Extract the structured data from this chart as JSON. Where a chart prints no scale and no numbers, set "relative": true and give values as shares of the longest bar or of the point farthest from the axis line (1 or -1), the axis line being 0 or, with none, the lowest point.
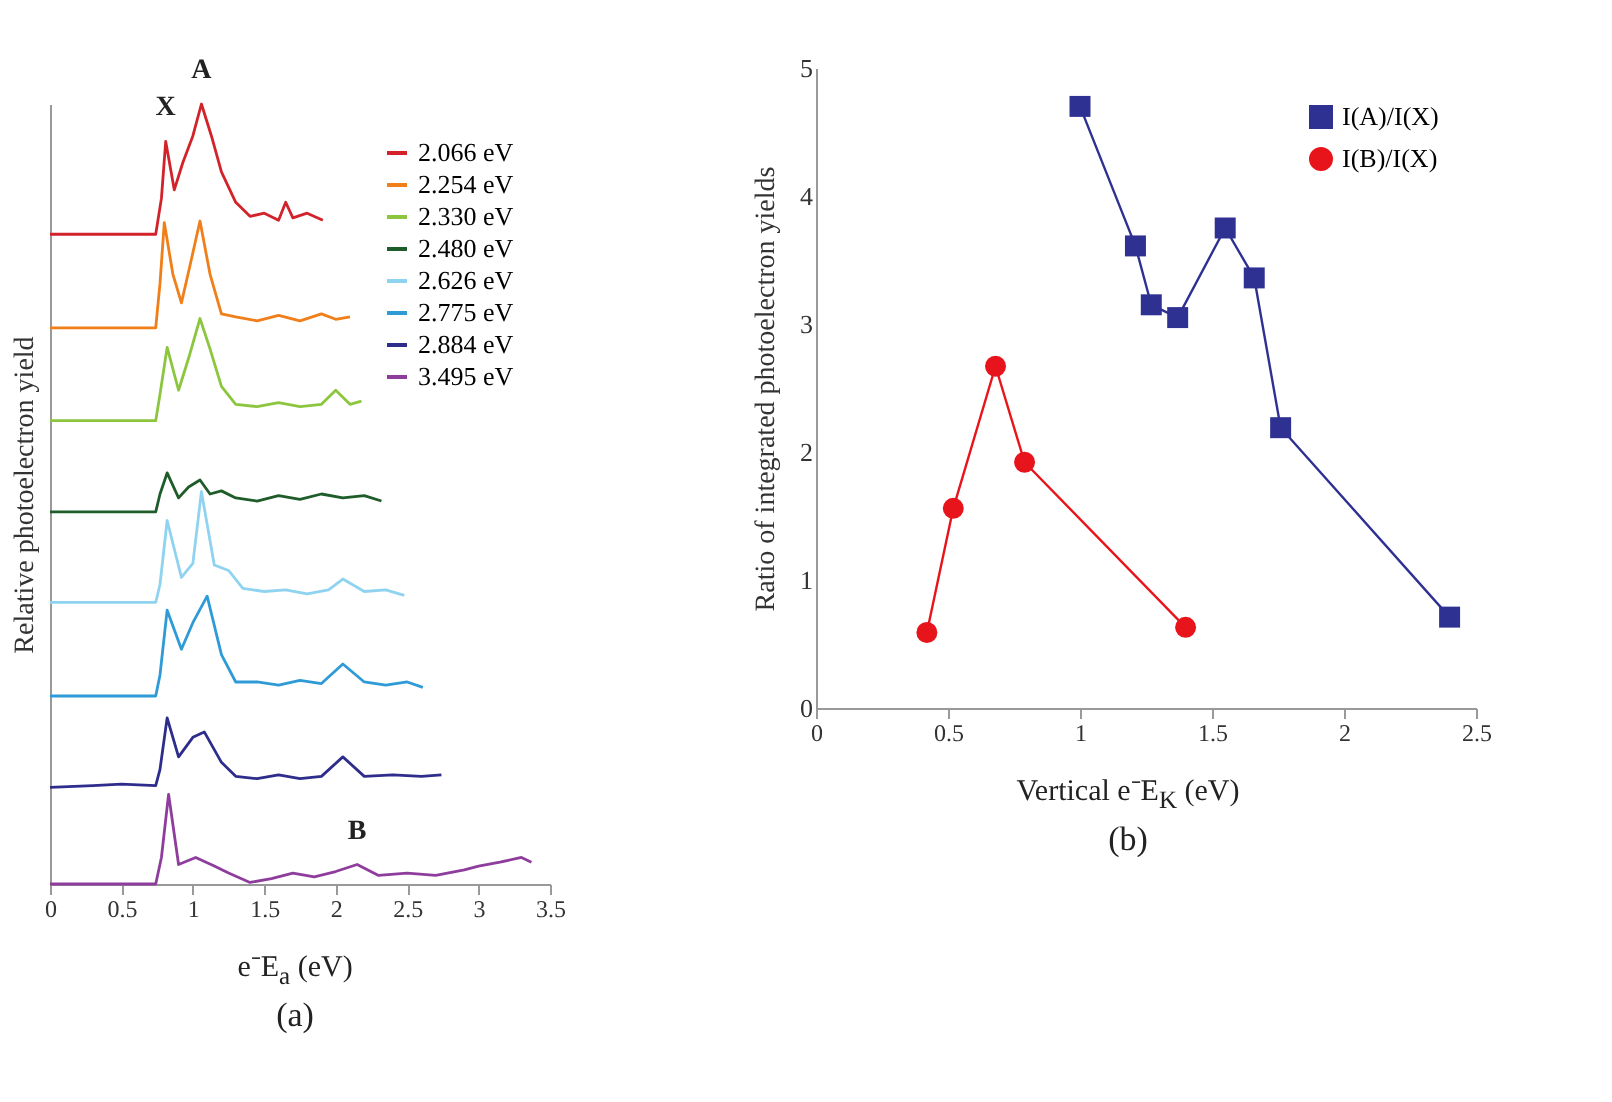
{
  "chart_data": [
    {
      "type": "line",
      "title": "(a)",
      "xlabel": "e⁻E$_{a}$ (eV)",
      "ylabel": "Relative photoelectron yield",
      "relative": true,
      "xlim": [
        0,
        3.5
      ],
      "xticks": [
        0,
        0.5,
        1,
        1.5,
        2,
        2.5,
        3,
        3.5
      ],
      "legend": "top right",
      "grid": false,
      "annotations": [
        {
          "text": "X",
          "x": 0.81,
          "y": 0.952
        },
        {
          "text": "A",
          "x": 1.06,
          "y": 1.0
        },
        {
          "text": "B",
          "x": 2.15,
          "y": 0.025
        }
      ],
      "series": [
        {
          "name": "2.066 eV",
          "color": "#d2232a",
          "x": [
            0,
            0.5,
            0.74,
            0.78,
            0.81,
            0.87,
            0.93,
            1.0,
            1.06,
            1.13,
            1.2,
            1.3,
            1.4,
            1.5,
            1.6,
            1.65,
            1.7,
            1.8,
            1.91
          ],
          "values": [
            0.833,
            0.833,
            0.833,
            0.879,
            0.952,
            0.89,
            0.925,
            0.959,
            1.0,
            0.959,
            0.913,
            0.874,
            0.856,
            0.86,
            0.851,
            0.874,
            0.854,
            0.86,
            0.851
          ]
        },
        {
          "name": "2.254 eV",
          "color": "#f07f1a",
          "x": [
            0,
            0.5,
            0.74,
            0.77,
            0.8,
            0.86,
            0.92,
            0.98,
            1.05,
            1.12,
            1.2,
            1.3,
            1.45,
            1.6,
            1.75,
            1.9,
            2.0,
            2.1
          ],
          "values": [
            0.713,
            0.713,
            0.713,
            0.77,
            0.848,
            0.782,
            0.745,
            0.793,
            0.85,
            0.782,
            0.731,
            0.727,
            0.722,
            0.729,
            0.722,
            0.731,
            0.724,
            0.727
          ]
        },
        {
          "name": "2.330 eV",
          "color": "#8cc63e",
          "x": [
            0,
            0.5,
            0.74,
            0.77,
            0.82,
            0.9,
            0.97,
            1.05,
            1.12,
            1.2,
            1.3,
            1.45,
            1.6,
            1.75,
            1.9,
            2.0,
            2.1,
            2.18
          ],
          "values": [
            0.594,
            0.594,
            0.594,
            0.628,
            0.688,
            0.633,
            0.674,
            0.725,
            0.686,
            0.638,
            0.615,
            0.612,
            0.617,
            0.612,
            0.615,
            0.633,
            0.615,
            0.619
          ]
        },
        {
          "name": "2.480 eV",
          "color": "#1e5c2a",
          "x": [
            0,
            0.5,
            0.74,
            0.77,
            0.82,
            0.9,
            0.97,
            1.05,
            1.12,
            1.2,
            1.3,
            1.45,
            1.6,
            1.75,
            1.9,
            2.05,
            2.2,
            2.32
          ],
          "values": [
            0.477,
            0.477,
            0.477,
            0.5,
            0.527,
            0.495,
            0.509,
            0.518,
            0.5,
            0.504,
            0.495,
            0.491,
            0.498,
            0.493,
            0.5,
            0.495,
            0.498,
            0.491
          ]
        },
        {
          "name": "2.626 eV",
          "color": "#8fd3f0",
          "x": [
            0,
            0.5,
            0.74,
            0.77,
            0.82,
            0.92,
            1.0,
            1.06,
            1.15,
            1.25,
            1.35,
            1.5,
            1.65,
            1.8,
            1.95,
            2.05,
            2.2,
            2.35,
            2.48
          ],
          "values": [
            0.361,
            0.361,
            0.361,
            0.384,
            0.466,
            0.393,
            0.411,
            0.503,
            0.409,
            0.402,
            0.379,
            0.375,
            0.377,
            0.372,
            0.377,
            0.391,
            0.375,
            0.377,
            0.37
          ]
        },
        {
          "name": "2.775 eV",
          "color": "#2f9bd6",
          "x": [
            0,
            0.5,
            0.74,
            0.77,
            0.82,
            0.92,
            1.0,
            1.1,
            1.2,
            1.3,
            1.45,
            1.6,
            1.75,
            1.9,
            2.05,
            2.2,
            2.35,
            2.5,
            2.61
          ],
          "values": [
            0.241,
            0.241,
            0.241,
            0.268,
            0.351,
            0.301,
            0.335,
            0.369,
            0.294,
            0.259,
            0.259,
            0.255,
            0.261,
            0.257,
            0.282,
            0.259,
            0.255,
            0.259,
            0.252
          ]
        },
        {
          "name": "2.884 eV",
          "color": "#2e2d8c",
          "x": [
            0,
            0.3,
            0.5,
            0.74,
            0.77,
            0.82,
            0.9,
            1.0,
            1.08,
            1.2,
            1.3,
            1.45,
            1.6,
            1.75,
            1.9,
            2.05,
            2.2,
            2.4,
            2.6,
            2.74
          ],
          "values": [
            0.124,
            0.126,
            0.128,
            0.126,
            0.147,
            0.213,
            0.163,
            0.188,
            0.195,
            0.156,
            0.138,
            0.135,
            0.14,
            0.135,
            0.138,
            0.163,
            0.138,
            0.14,
            0.138,
            0.14
          ]
        },
        {
          "name": "3.495 eV",
          "color": "#8e3d9c",
          "x": [
            0,
            0.5,
            0.74,
            0.78,
            0.83,
            0.9,
            1.02,
            1.15,
            1.25,
            1.4,
            1.55,
            1.7,
            1.85,
            2.0,
            2.15,
            2.3,
            2.5,
            2.7,
            2.9,
            3.0,
            3.15,
            3.3,
            3.37
          ],
          "values": [
            0,
            0,
            0,
            0.034,
            0.115,
            0.025,
            0.034,
            0.023,
            0.014,
            0.002,
            0.007,
            0.014,
            0.009,
            0.016,
            0.025,
            0.011,
            0.014,
            0.011,
            0.018,
            0.023,
            0.028,
            0.034,
            0.028
          ]
        }
      ]
    },
    {
      "type": "line",
      "title": "(b)",
      "xlabel": "Vertical e⁻E$_{K}$ (eV)",
      "ylabel": "Ratio of integrated photoelectron yields",
      "xlim": [
        0,
        2.5
      ],
      "xticks": [
        0,
        0.5,
        1,
        1.5,
        2,
        2.5
      ],
      "ylim": [
        0,
        5
      ],
      "yticks": [
        0,
        1,
        2,
        3,
        4,
        5
      ],
      "legend": "top right",
      "grid": false,
      "series": [
        {
          "name": "I(A)/I(X)",
          "color": "#2e3192",
          "marker": "square",
          "x": [
            1.0,
            1.21,
            1.27,
            1.37,
            1.55,
            1.66,
            1.76,
            2.4
          ],
          "values": [
            4.7,
            3.61,
            3.15,
            3.05,
            3.75,
            3.36,
            2.19,
            0.71
          ]
        },
        {
          "name": "I(B)/I(X)",
          "color": "#e8141b",
          "marker": "circle",
          "x": [
            0.42,
            0.52,
            0.68,
            0.79,
            1.4
          ],
          "values": [
            0.59,
            1.56,
            2.67,
            1.92,
            0.63
          ]
        }
      ]
    }
  ]
}
